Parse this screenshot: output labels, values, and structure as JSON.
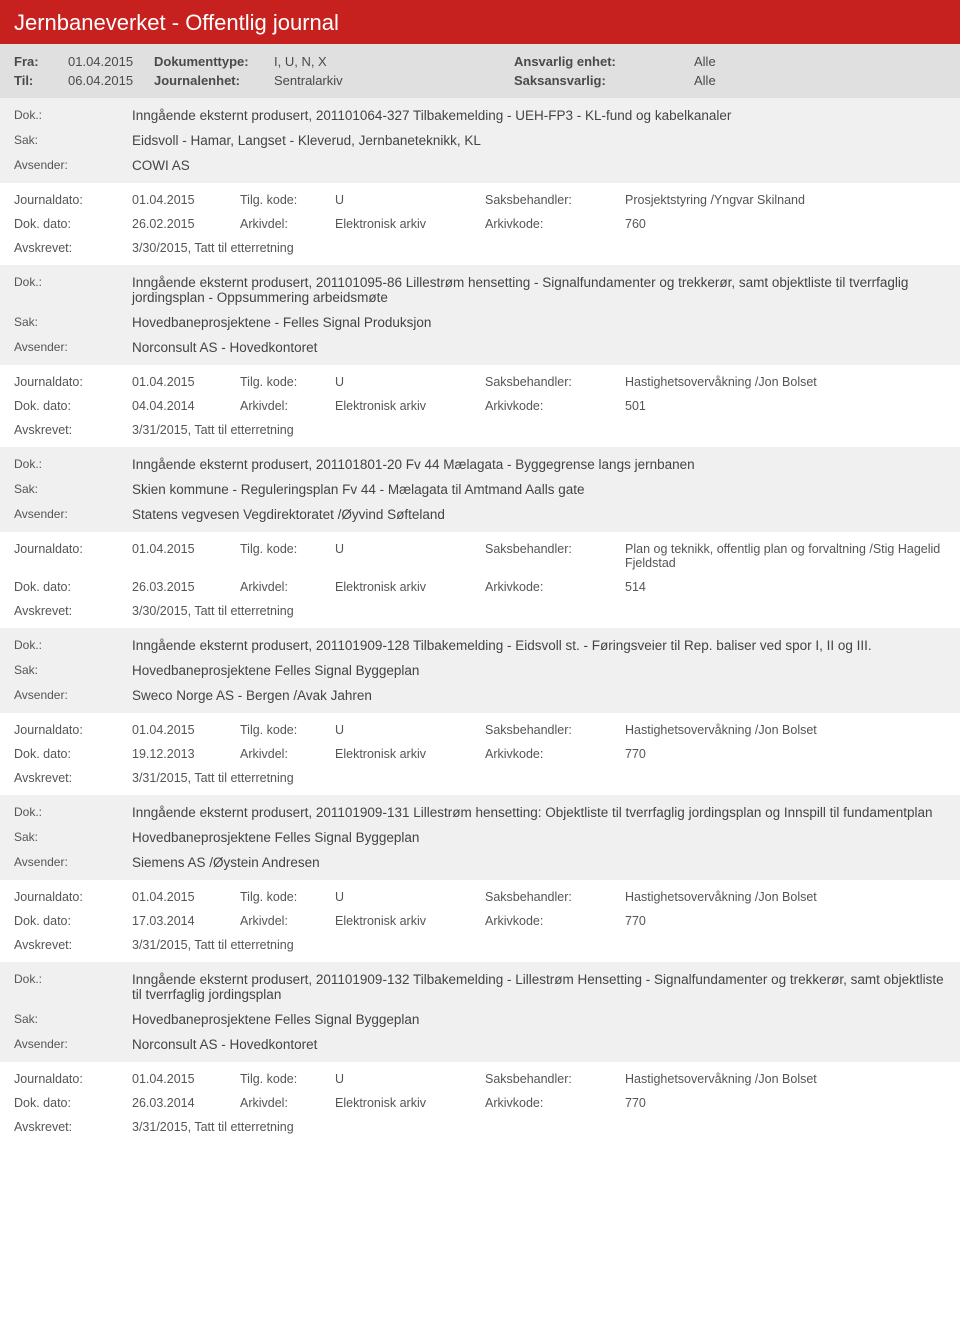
{
  "header": {
    "title": "Jernbaneverket - Offentlig journal"
  },
  "filter": {
    "fra_label": "Fra:",
    "fra_value": "01.04.2015",
    "til_label": "Til:",
    "til_value": "06.04.2015",
    "doktype_label": "Dokumenttype:",
    "doktype_value": "I, U, N, X",
    "journalenhet_label": "Journalenhet:",
    "journalenhet_value": "Sentralarkiv",
    "ansvarlig_label": "Ansvarlig enhet:",
    "ansvarlig_value": "Alle",
    "saksansvarlig_label": "Saksansvarlig:",
    "saksansvarlig_value": "Alle"
  },
  "labels": {
    "dok": "Dok.:",
    "sak": "Sak:",
    "avsender": "Avsender:",
    "journaldato": "Journaldato:",
    "tilgkode": "Tilg. kode:",
    "saksbehandler": "Saksbehandler:",
    "dokdato": "Dok. dato:",
    "arkivdel": "Arkivdel:",
    "arkivkode": "Arkivkode:",
    "avskrevet": "Avskrevet:"
  },
  "records": [
    {
      "dok": "Inngående eksternt produsert, 201101064-327 Tilbakemelding - UEH-FP3 - KL-fund og kabelkanaler",
      "sak": "Eidsvoll - Hamar, Langset - Kleverud, Jernbaneteknikk, KL",
      "avsender": "COWI AS",
      "journaldato": "01.04.2015",
      "tilgkode": "U",
      "saksbehandler": "Prosjektstyring /Yngvar Skilnand",
      "dokdato": "26.02.2015",
      "arkivdel": "Elektronisk arkiv",
      "arkivkode": "760",
      "avskrevet": "3/30/2015, Tatt til etterretning"
    },
    {
      "dok": "Inngående eksternt produsert, 201101095-86 Lillestrøm hensetting - Signalfundamenter og trekkerør, samt objektliste til tverrfaglig jordingsplan - Oppsummering arbeidsmøte",
      "sak": "Hovedbaneprosjektene - Felles Signal Produksjon",
      "avsender": "Norconsult AS - Hovedkontoret",
      "journaldato": "01.04.2015",
      "tilgkode": "U",
      "saksbehandler": "Hastighetsovervåkning /Jon Bolset",
      "dokdato": "04.04.2014",
      "arkivdel": "Elektronisk arkiv",
      "arkivkode": "501",
      "avskrevet": "3/31/2015, Tatt til etterretning"
    },
    {
      "dok": "Inngående eksternt produsert, 201101801-20 Fv 44 Mælagata - Byggegrense langs jernbanen",
      "sak": "Skien kommune - Reguleringsplan Fv 44 - Mælagata til Amtmand Aalls gate",
      "avsender": "Statens vegvesen Vegdirektoratet /Øyvind Søfteland",
      "journaldato": "01.04.2015",
      "tilgkode": "U",
      "saksbehandler": "Plan og teknikk, offentlig plan og forvaltning /Stig Hagelid Fjeldstad",
      "dokdato": "26.03.2015",
      "arkivdel": "Elektronisk arkiv",
      "arkivkode": "514",
      "avskrevet": "3/30/2015, Tatt til etterretning"
    },
    {
      "dok": "Inngående eksternt produsert, 201101909-128 Tilbakemelding - Eidsvoll st. - Føringsveier til  Rep. baliser ved spor I, II og III.",
      "sak": "Hovedbaneprosjektene Felles Signal Byggeplan",
      "avsender": "Sweco Norge AS - Bergen /Avak Jahren",
      "journaldato": "01.04.2015",
      "tilgkode": "U",
      "saksbehandler": "Hastighetsovervåkning /Jon Bolset",
      "dokdato": "19.12.2013",
      "arkivdel": "Elektronisk arkiv",
      "arkivkode": "770",
      "avskrevet": "3/31/2015, Tatt til etterretning"
    },
    {
      "dok": "Inngående eksternt produsert, 201101909-131 Lillestrøm hensetting: Objektliste til tverrfaglig jordingsplan og Innspill til fundamentplan",
      "sak": "Hovedbaneprosjektene Felles Signal Byggeplan",
      "avsender": "Siemens AS /Øystein Andresen",
      "journaldato": "01.04.2015",
      "tilgkode": "U",
      "saksbehandler": "Hastighetsovervåkning /Jon Bolset",
      "dokdato": "17.03.2014",
      "arkivdel": "Elektronisk arkiv",
      "arkivkode": "770",
      "avskrevet": "3/31/2015, Tatt til etterretning"
    },
    {
      "dok": "Inngående eksternt produsert, 201101909-132 Tilbakemelding - Lillestrøm Hensetting - Signalfundamenter og trekkerør, samt objektliste til tverrfaglig jordingsplan",
      "sak": "Hovedbaneprosjektene Felles Signal Byggeplan",
      "avsender": "Norconsult AS - Hovedkontoret",
      "journaldato": "01.04.2015",
      "tilgkode": "U",
      "saksbehandler": "Hastighetsovervåkning /Jon Bolset",
      "dokdato": "26.03.2014",
      "arkivdel": "Elektronisk arkiv",
      "arkivkode": "770",
      "avskrevet": "3/31/2015, Tatt til etterretning"
    }
  ]
}
